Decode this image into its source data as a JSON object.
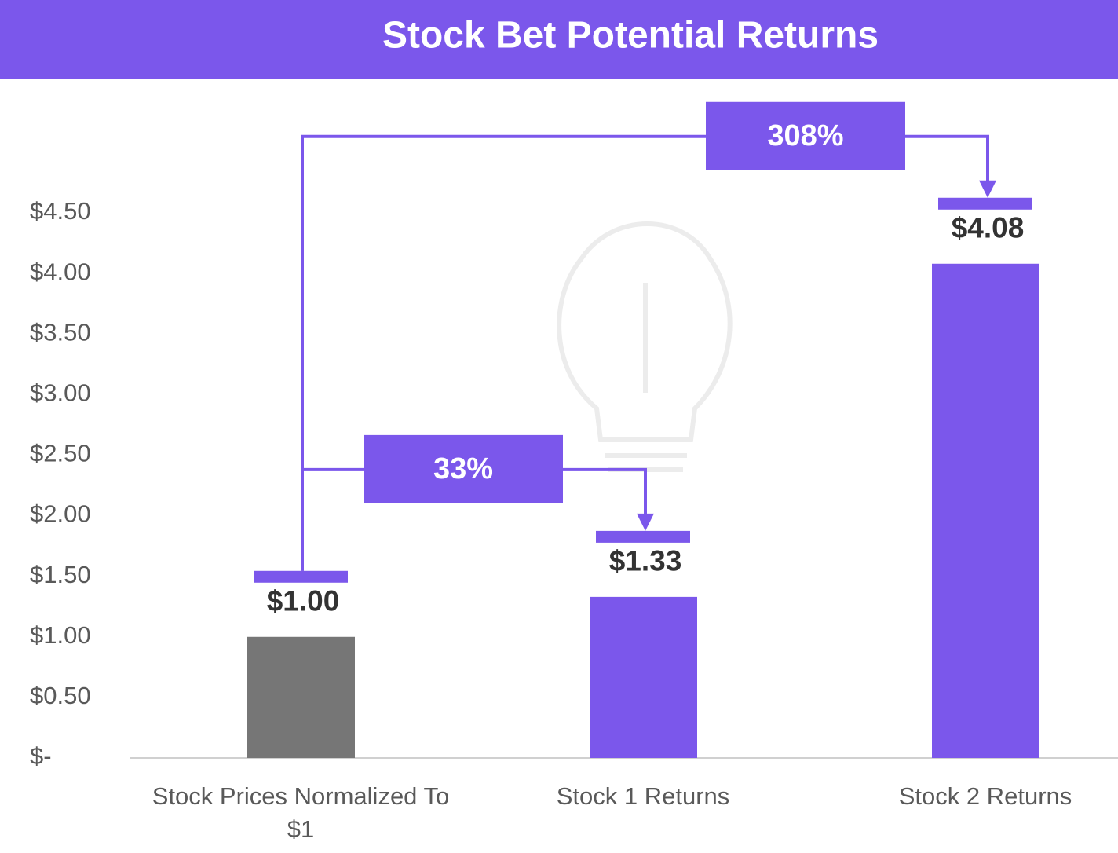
{
  "chart_data": {
    "type": "bar",
    "title": "Stock Bet Potential Returns",
    "categories": [
      "Stock Prices Normalized To $1",
      "Stock 1 Returns",
      "Stock 2 Returns"
    ],
    "values": [
      1.0,
      1.33,
      4.08
    ],
    "value_labels": [
      "$1.00",
      "$1.33",
      "$4.08"
    ],
    "colors": [
      "#767676",
      "#7b57eb",
      "#7b57eb"
    ],
    "ylim": [
      0,
      4.5
    ],
    "yticks": [
      {
        "value": 0,
        "label": "$-"
      },
      {
        "value": 0.5,
        "label": "$0.50"
      },
      {
        "value": 1,
        "label": "$1.00"
      },
      {
        "value": 1.5,
        "label": "$1.50"
      },
      {
        "value": 2,
        "label": "$2.00"
      },
      {
        "value": 2.5,
        "label": "$2.50"
      },
      {
        "value": 3,
        "label": "$3.00"
      },
      {
        "value": 3.5,
        "label": "$3.50"
      },
      {
        "value": 4,
        "label": "$4.00"
      },
      {
        "value": 4.5,
        "label": "$4.50"
      }
    ],
    "annotations": [
      "33%",
      "308%"
    ],
    "grid": false
  }
}
